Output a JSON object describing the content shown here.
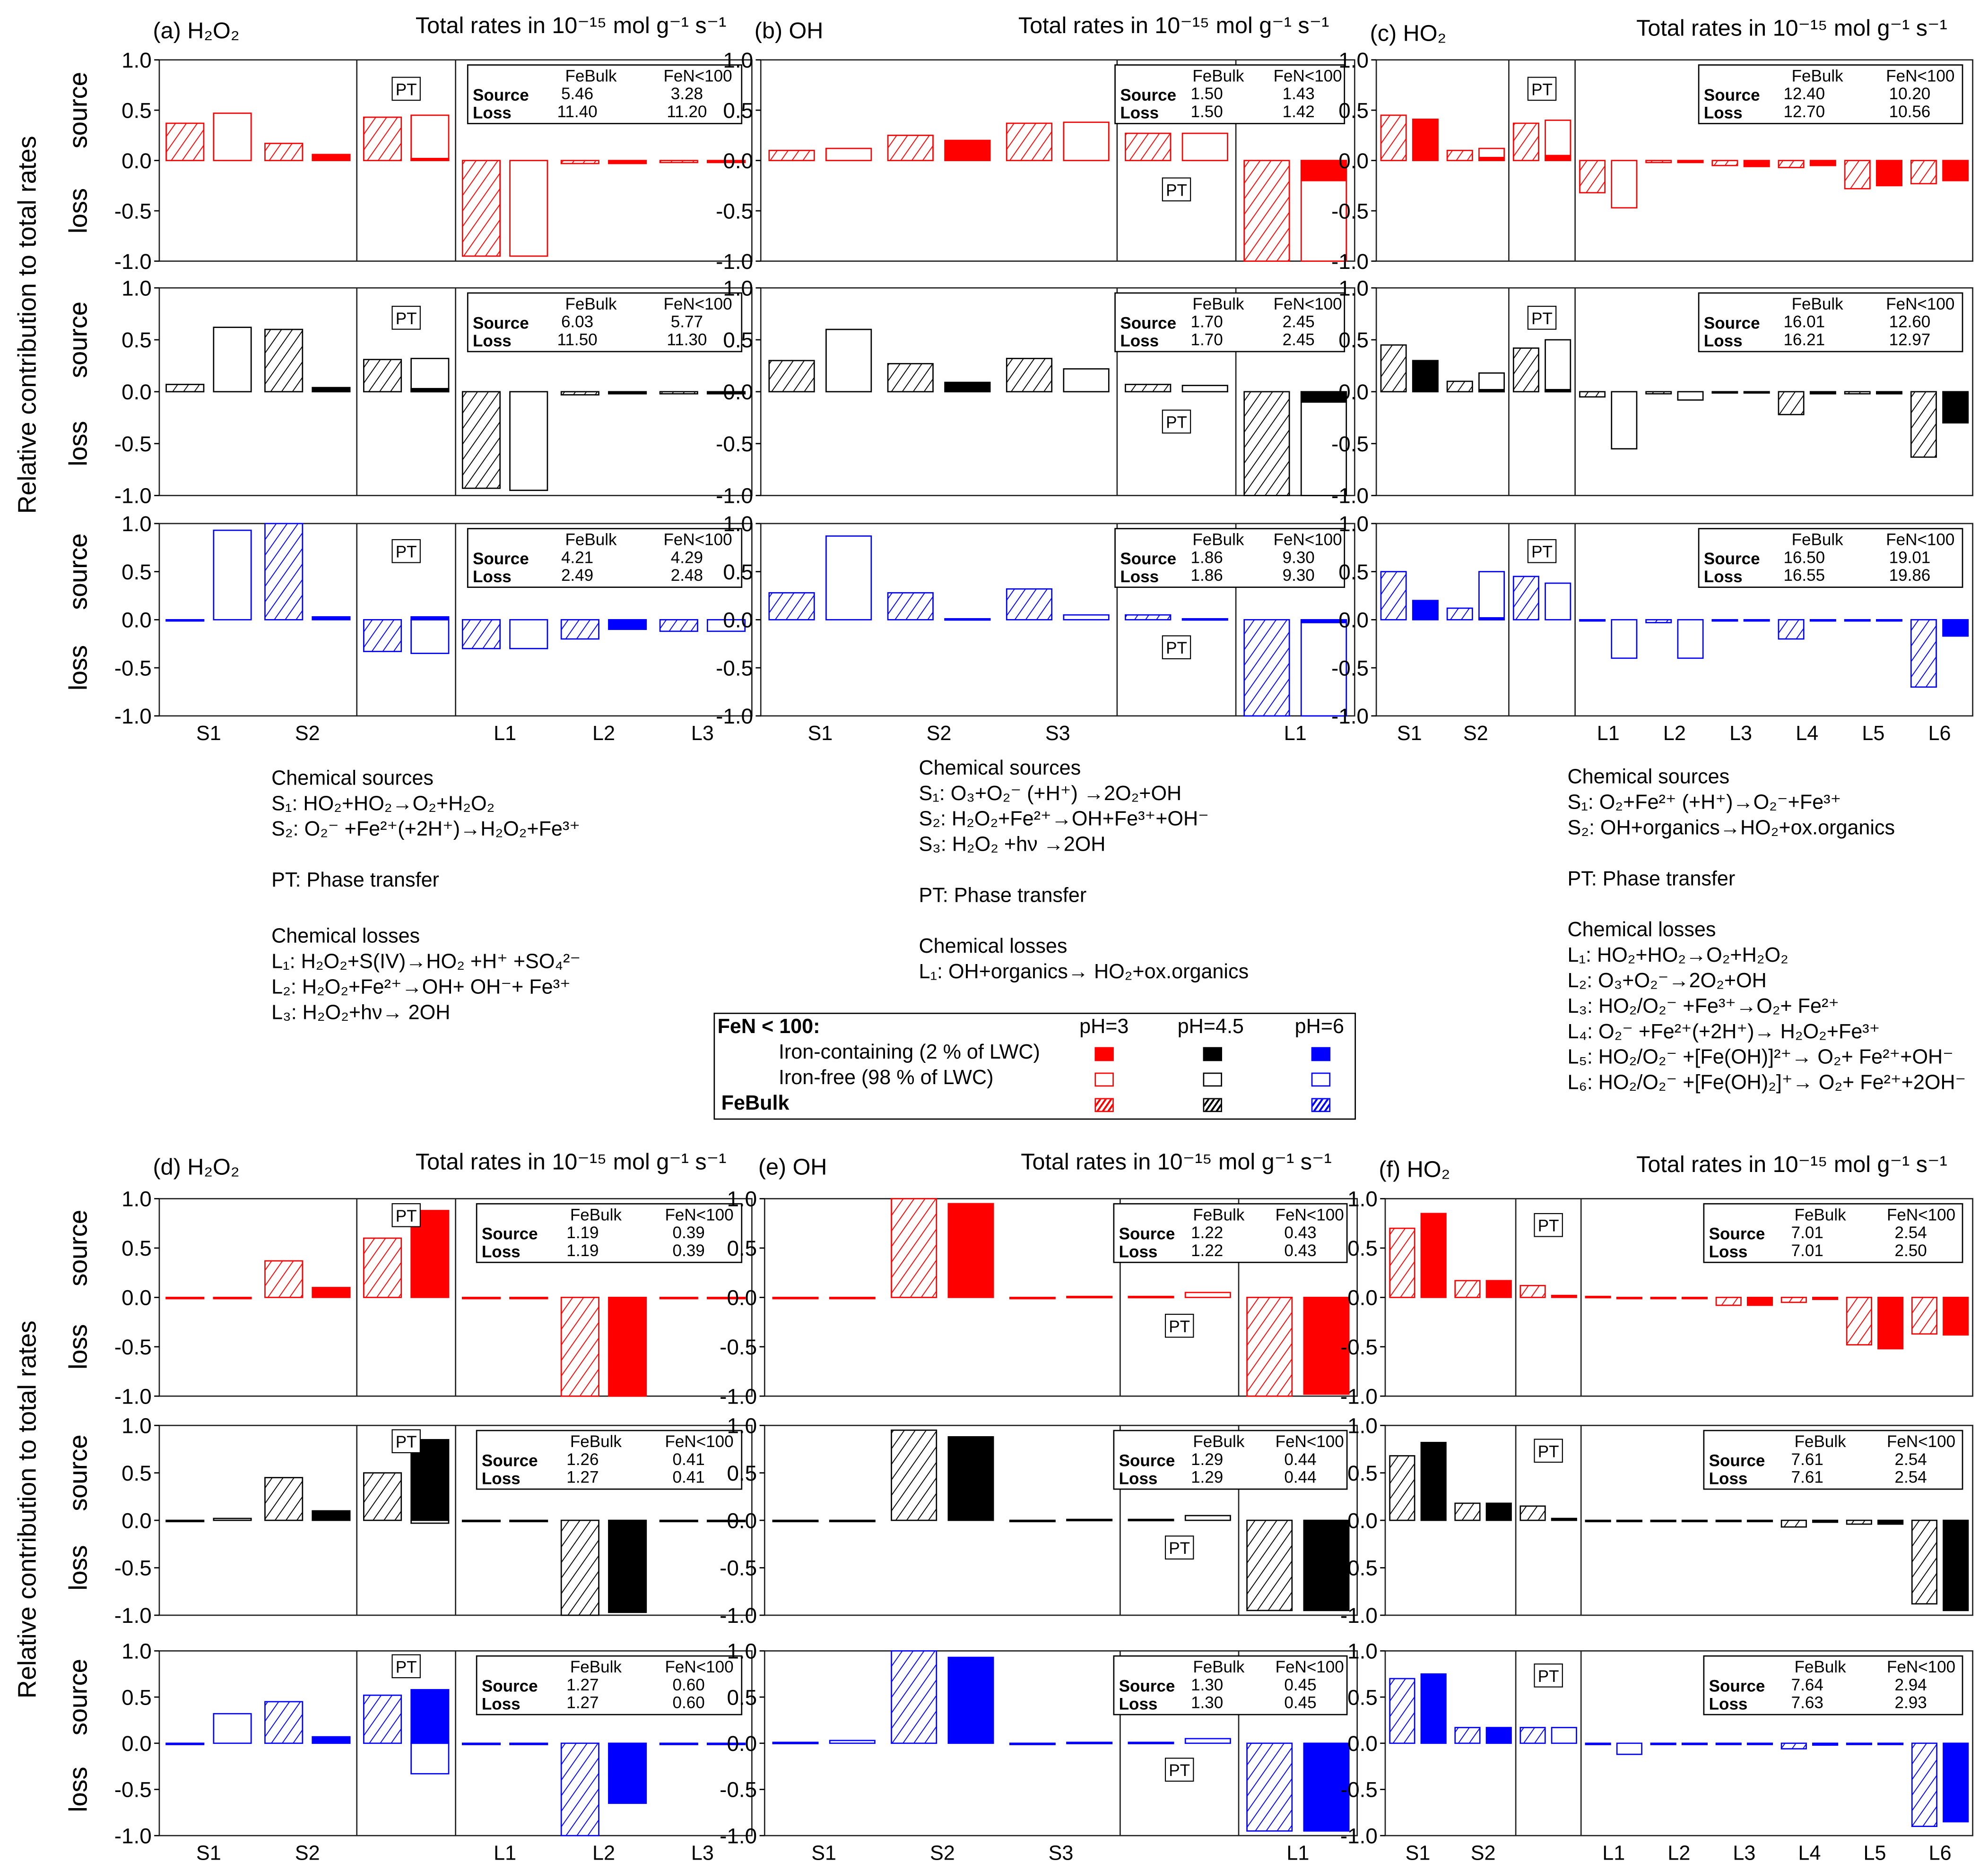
{
  "y_axis_label": "Relative contribution to total rates",
  "source_label": "source",
  "loss_label": "loss",
  "pt_label": "PT",
  "yticks": [
    "1.0",
    "0.5",
    "0.0",
    "-0.5",
    "-1.0"
  ],
  "table_headers": {
    "febulk": "FeBulk",
    "fen": "FeN<100",
    "source": "Source",
    "loss": "Loss"
  },
  "colors": {
    "pH3": "#ff0000",
    "pH4.5": "#000000",
    "pH6": "#0000ff"
  },
  "chart_data": [
    {
      "id": "a",
      "type": "bar",
      "title": "(a) H₂O₂",
      "rates_title": "Total rates in 10⁻¹⁵ mol g⁻¹ s⁻¹",
      "ylim": [
        -1,
        1
      ],
      "categories": [
        "S1",
        "S2",
        "PT",
        "L1",
        "L2",
        "L3"
      ],
      "rows": [
        {
          "pH": "3",
          "totals": {
            "febulk": [
              "5.46",
              "11.40"
            ],
            "fen": [
              "3.28",
              "11.20"
            ]
          },
          "febulk": [
            0.37,
            0.17,
            0.43,
            -0.95,
            -0.03,
            -0.02
          ],
          "fen_iron_free": [
            0.47,
            0,
            0.45,
            -0.95,
            0,
            0
          ],
          "fen_iron_containing": [
            0,
            0.06,
            0.02,
            0,
            -0.03,
            -0.02
          ]
        },
        {
          "pH": "4.5",
          "totals": {
            "febulk": [
              "6.03",
              "11.50"
            ],
            "fen": [
              "5.77",
              "11.30"
            ]
          },
          "febulk": [
            0.07,
            0.6,
            0.31,
            -0.93,
            -0.03,
            -0.02
          ],
          "fen_iron_free": [
            0.62,
            0,
            0.32,
            -0.95,
            0,
            0
          ],
          "fen_iron_containing": [
            0,
            0.04,
            0.03,
            0,
            -0.02,
            -0.02
          ]
        },
        {
          "pH": "6",
          "totals": {
            "febulk": [
              "4.21",
              "2.49"
            ],
            "fen": [
              "4.29",
              "2.48"
            ]
          },
          "febulk": [
            0,
            1.0,
            -0.33,
            -0.3,
            -0.2,
            -0.12
          ],
          "fen_iron_free": [
            0.93,
            0,
            -0.35,
            -0.3,
            0,
            -0.12
          ],
          "fen_iron_containing": [
            0,
            0.03,
            0.03,
            0,
            -0.1,
            0
          ]
        }
      ]
    },
    {
      "id": "b",
      "type": "bar",
      "title": "(b) OH",
      "rates_title": "Total rates in 10⁻¹⁵ mol g⁻¹ s⁻¹",
      "ylim": [
        -1,
        1
      ],
      "categories": [
        "S1",
        "S2",
        "S3",
        "PT",
        "L1"
      ],
      "rows": [
        {
          "pH": "3",
          "totals": {
            "febulk": [
              "1.50",
              "1.50"
            ],
            "fen": [
              "1.43",
              "1.42"
            ]
          },
          "febulk": [
            0.1,
            0.25,
            0.37,
            0.27,
            -1.0
          ],
          "fen_iron_free": [
            0.12,
            0,
            0.38,
            0.27,
            -1.0
          ],
          "fen_iron_containing": [
            0,
            0.2,
            0,
            0,
            -0.2
          ]
        },
        {
          "pH": "4.5",
          "totals": {
            "febulk": [
              "1.70",
              "1.70"
            ],
            "fen": [
              "2.45",
              "2.45"
            ]
          },
          "febulk": [
            0.3,
            0.27,
            0.32,
            0.07,
            -1.0
          ],
          "fen_iron_free": [
            0.6,
            0,
            0.22,
            0.06,
            -1.0
          ],
          "fen_iron_containing": [
            0,
            0.09,
            0,
            0,
            -0.1
          ]
        },
        {
          "pH": "6",
          "totals": {
            "febulk": [
              "1.86",
              "1.86"
            ],
            "fen": [
              "9.30",
              "9.30"
            ]
          },
          "febulk": [
            0.28,
            0.28,
            0.32,
            0.05,
            -1.0
          ],
          "fen_iron_free": [
            0.87,
            0,
            0.05,
            0.01,
            -1.0
          ],
          "fen_iron_containing": [
            0,
            0.01,
            0,
            0,
            -0.03
          ]
        }
      ]
    },
    {
      "id": "c",
      "type": "bar",
      "title": "(c) HO₂",
      "rates_title": "Total rates in 10⁻¹⁵ mol g⁻¹ s⁻¹",
      "ylim": [
        -1,
        1
      ],
      "categories": [
        "S1",
        "S2",
        "PT",
        "L1",
        "L2",
        "L3",
        "L4",
        "L5",
        "L6"
      ],
      "rows": [
        {
          "pH": "3",
          "totals": {
            "febulk": [
              "12.40",
              "12.70"
            ],
            "fen": [
              "10.20",
              "10.56"
            ]
          },
          "febulk": [
            0.45,
            0.1,
            0.37,
            -0.32,
            -0.02,
            -0.05,
            -0.07,
            -0.28,
            -0.23
          ],
          "fen_iron_free": [
            0,
            0.12,
            0.4,
            -0.47,
            0,
            0,
            0,
            0,
            0
          ],
          "fen_iron_containing": [
            0.41,
            0.03,
            0.05,
            0,
            -0.02,
            -0.06,
            -0.05,
            -0.25,
            -0.2
          ]
        },
        {
          "pH": "4.5",
          "totals": {
            "febulk": [
              "16.01",
              "16.21"
            ],
            "fen": [
              "12.60",
              "12.97"
            ]
          },
          "febulk": [
            0.45,
            0.1,
            0.42,
            -0.05,
            -0.02,
            -0.01,
            -0.22,
            -0.02,
            -0.63
          ],
          "fen_iron_free": [
            0,
            0.18,
            0.5,
            -0.55,
            -0.08,
            0,
            0,
            0,
            0
          ],
          "fen_iron_containing": [
            0.3,
            0.02,
            0.02,
            0,
            0,
            -0.01,
            -0.02,
            -0.02,
            -0.3
          ]
        },
        {
          "pH": "6",
          "totals": {
            "febulk": [
              "16.50",
              "16.55"
            ],
            "fen": [
              "19.01",
              "19.86"
            ]
          },
          "febulk": [
            0.5,
            0.12,
            0.45,
            -0.01,
            -0.03,
            0,
            -0.2,
            -0.01,
            -0.7
          ],
          "fen_iron_free": [
            0,
            0.5,
            0.38,
            -0.4,
            -0.4,
            0,
            0,
            0,
            0
          ],
          "fen_iron_containing": [
            0.2,
            0.02,
            0,
            0,
            0,
            -0.01,
            -0.01,
            -0.01,
            -0.17
          ]
        }
      ]
    },
    {
      "id": "d",
      "type": "bar",
      "title": "(d) H₂O₂",
      "rates_title": "Total rates in 10⁻¹⁵ mol g⁻¹ s⁻¹",
      "ylim": [
        -1,
        1
      ],
      "categories": [
        "S1",
        "S2",
        "PT",
        "L1",
        "L2",
        "L3"
      ],
      "rows": [
        {
          "pH": "3",
          "totals": {
            "febulk": [
              "1.19",
              "1.19"
            ],
            "fen": [
              "0.39",
              "0.39"
            ]
          },
          "febulk": [
            0,
            0.37,
            0.6,
            0,
            -1.0,
            0
          ],
          "fen_iron_free": [
            0,
            0,
            0,
            0,
            0,
            0
          ],
          "fen_iron_containing": [
            0,
            0.1,
            0.88,
            -0.01,
            -1.0,
            -0.01
          ]
        },
        {
          "pH": "4.5",
          "totals": {
            "febulk": [
              "1.26",
              "1.27"
            ],
            "fen": [
              "0.41",
              "0.41"
            ]
          },
          "febulk": [
            0,
            0.45,
            0.5,
            0,
            -1.0,
            0
          ],
          "fen_iron_free": [
            0.02,
            0,
            -0.03,
            0,
            0,
            0
          ],
          "fen_iron_containing": [
            0,
            0.1,
            0.85,
            -0.01,
            -0.97,
            -0.01
          ]
        },
        {
          "pH": "6",
          "totals": {
            "febulk": [
              "1.27",
              "1.27"
            ],
            "fen": [
              "0.60",
              "0.60"
            ]
          },
          "febulk": [
            0,
            0.45,
            0.52,
            0,
            -1.0,
            0
          ],
          "fen_iron_free": [
            0.32,
            0,
            -0.33,
            0,
            0,
            0
          ],
          "fen_iron_containing": [
            0,
            0.07,
            0.58,
            -0.01,
            -0.65,
            -0.01
          ]
        }
      ]
    },
    {
      "id": "e",
      "type": "bar",
      "title": "(e) OH",
      "rates_title": "Total rates in 10⁻¹⁵ mol g⁻¹ s⁻¹",
      "ylim": [
        -1,
        1
      ],
      "categories": [
        "S1",
        "S2",
        "S3",
        "PT",
        "L1"
      ],
      "rows": [
        {
          "pH": "3",
          "totals": {
            "febulk": [
              "1.22",
              "1.22"
            ],
            "fen": [
              "0.43",
              "0.43"
            ]
          },
          "febulk": [
            0,
            1.0,
            0,
            0.01,
            -1.0
          ],
          "fen_iron_free": [
            0,
            0,
            0,
            0.05,
            0
          ],
          "fen_iron_containing": [
            0,
            0.95,
            0.01,
            0,
            -0.98
          ]
        },
        {
          "pH": "4.5",
          "totals": {
            "febulk": [
              "1.29",
              "1.29"
            ],
            "fen": [
              "0.44",
              "0.44"
            ]
          },
          "febulk": [
            0,
            0.95,
            0,
            0.01,
            -0.95
          ],
          "fen_iron_free": [
            0,
            0,
            0,
            0.05,
            0
          ],
          "fen_iron_containing": [
            0,
            0.88,
            0.01,
            0,
            -0.95
          ]
        },
        {
          "pH": "6",
          "totals": {
            "febulk": [
              "1.30",
              "1.30"
            ],
            "fen": [
              "0.45",
              "0.45"
            ]
          },
          "febulk": [
            0.01,
            1.0,
            0,
            0.01,
            -0.95
          ],
          "fen_iron_free": [
            0.03,
            0,
            0,
            0.05,
            0
          ],
          "fen_iron_containing": [
            0,
            0.93,
            0.01,
            0,
            -0.95
          ]
        }
      ]
    },
    {
      "id": "f",
      "type": "bar",
      "title": "(f) HO₂",
      "rates_title": "Total rates in 10⁻¹⁵ mol g⁻¹ s⁻¹",
      "ylim": [
        -1,
        1
      ],
      "categories": [
        "S1",
        "S2",
        "PT",
        "L1",
        "L2",
        "L3",
        "L4",
        "L5",
        "L6"
      ],
      "rows": [
        {
          "pH": "3",
          "totals": {
            "febulk": [
              "7.01",
              "7.01"
            ],
            "fen": [
              "2.54",
              "2.50"
            ]
          },
          "febulk": [
            0.7,
            0.17,
            0.12,
            0.01,
            0,
            -0.08,
            -0.05,
            -0.48,
            -0.37
          ],
          "fen_iron_free": [
            0,
            0,
            0,
            0,
            0,
            0,
            0,
            0,
            0
          ],
          "fen_iron_containing": [
            0.85,
            0.17,
            0.02,
            0,
            0,
            -0.08,
            -0.02,
            -0.52,
            -0.38
          ]
        },
        {
          "pH": "4.5",
          "totals": {
            "febulk": [
              "7.61",
              "7.61"
            ],
            "fen": [
              "2.54",
              "2.54"
            ]
          },
          "febulk": [
            0.68,
            0.18,
            0.15,
            0,
            0,
            -0.01,
            -0.07,
            -0.04,
            -0.88
          ],
          "fen_iron_free": [
            0,
            0,
            0,
            0,
            0,
            0,
            0,
            0,
            0
          ],
          "fen_iron_containing": [
            0.82,
            0.18,
            0.02,
            0,
            0,
            -0.01,
            -0.02,
            -0.04,
            -0.95
          ]
        },
        {
          "pH": "6",
          "totals": {
            "febulk": [
              "7.64",
              "7.63"
            ],
            "fen": [
              "2.94",
              "2.93"
            ]
          },
          "febulk": [
            0.7,
            0.17,
            0.17,
            0,
            0,
            0,
            -0.06,
            0,
            -0.9
          ],
          "fen_iron_free": [
            0,
            0,
            0.17,
            -0.12,
            0,
            0,
            0,
            0,
            0
          ],
          "fen_iron_containing": [
            0.75,
            0.17,
            0,
            0,
            0,
            0,
            -0.02,
            0,
            -0.85
          ]
        }
      ]
    }
  ],
  "mechanisms": {
    "h2o2": {
      "sources_heading": "Chemical sources",
      "sources": [
        "S₁: HO₂+HO₂→O₂+H₂O₂",
        "S₂: O₂⁻ +Fe²⁺(+2H⁺)→H₂O₂+Fe³⁺"
      ],
      "pt": "PT: Phase transfer",
      "losses_heading": "Chemical losses",
      "losses": [
        "L₁: H₂O₂+S(IV)→HO₂ +H⁺ +SO₄²⁻",
        "L₂: H₂O₂+Fe²⁺→OH+ OH⁻+ Fe³⁺",
        "L₃: H₂O₂+hν→ 2OH"
      ]
    },
    "oh": {
      "sources_heading": "Chemical sources",
      "sources": [
        "S₁: O₃+O₂⁻ (+H⁺) →2O₂+OH",
        "S₂: H₂O₂+Fe²⁺→OH+Fe³⁺+OH⁻",
        "S₃: H₂O₂ +hν →2OH"
      ],
      "pt": "PT: Phase transfer",
      "losses_heading": "Chemical losses",
      "losses": [
        "L₁: OH+organics→ HO₂+ox.organics"
      ]
    },
    "ho2": {
      "sources_heading": "Chemical sources",
      "sources": [
        "S₁: O₂+Fe²⁺ (+H⁺)→O₂⁻+Fe³⁺",
        "S₂: OH+organics→HO₂+ox.organics"
      ],
      "pt": "PT: Phase transfer",
      "losses_heading": "Chemical losses",
      "losses": [
        "L₁: HO₂+HO₂→O₂+H₂O₂",
        "L₂: O₃+O₂⁻→2O₂+OH",
        "L₃: HO₂/O₂⁻ +Fe³⁺→O₂+ Fe²⁺",
        "L₄: O₂⁻ +Fe²⁺(+2H⁺)→ H₂O₂+Fe³⁺",
        "L₅: HO₂/O₂⁻ +[Fe(OH)]²⁺→ O₂+ Fe²⁺+OH⁻",
        "L₆: HO₂/O₂⁻ +[Fe(OH)₂]⁺→ O₂+ Fe²⁺+2OH⁻"
      ]
    }
  },
  "legend": {
    "title": "FeN < 100:",
    "ph_headers": [
      "pH=3",
      "pH=4.5",
      "pH=6"
    ],
    "iron_containing": "Iron-containing (2 % of LWC)",
    "iron_free": "Iron-free (98 % of LWC)",
    "febulk": "FeBulk"
  }
}
